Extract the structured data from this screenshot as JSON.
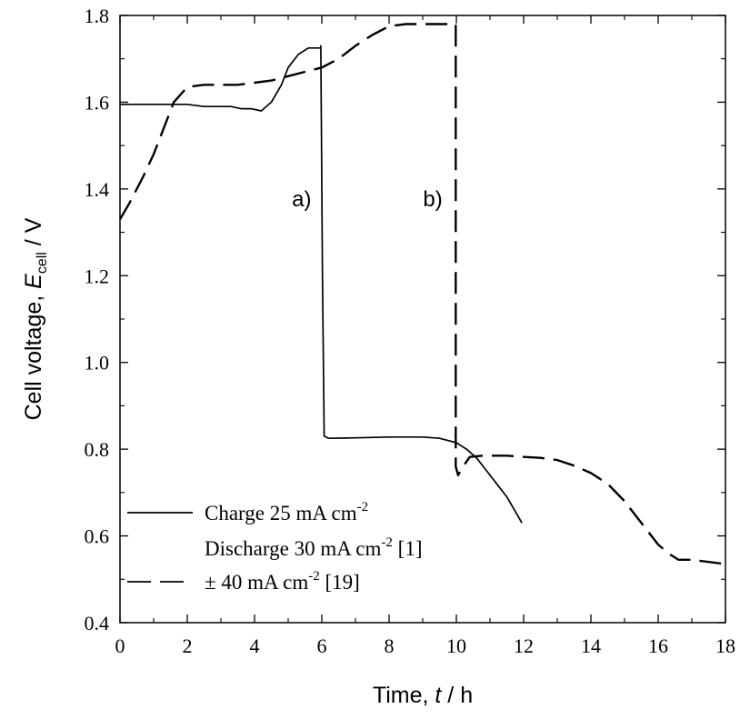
{
  "chart_data": {
    "type": "line",
    "title": "",
    "xlabel": {
      "prefix": "Time, ",
      "var": "t",
      "unit": " / h"
    },
    "ylabel": {
      "prefix": "Cell voltage, ",
      "var": "E",
      "sub": "cell",
      "unit": " / V"
    },
    "xlim": [
      0,
      18
    ],
    "ylim": [
      0.4,
      1.8
    ],
    "xticks": [
      0,
      2,
      4,
      6,
      8,
      10,
      12,
      14,
      16,
      18
    ],
    "yticks": [
      0.4,
      0.6,
      0.8,
      1.0,
      1.2,
      1.4,
      1.6,
      1.8
    ],
    "xtick_labels": [
      "0",
      "2",
      "4",
      "6",
      "8",
      "10",
      "12",
      "14",
      "16",
      "18"
    ],
    "ytick_labels": [
      "0.4",
      "0.6",
      "0.8",
      "1.0",
      "1.2",
      "1.4",
      "1.6",
      "1.8"
    ],
    "grid": false,
    "legend_position": "bottom-left",
    "series": [
      {
        "style": "solid",
        "legend_lines": [
          {
            "text": "Charge 25 mA cm",
            "sup": "-2",
            "after": ""
          },
          {
            "text": "Discharge 30 mA cm",
            "sup": "-2",
            "after": " [1]"
          }
        ],
        "x": [
          0,
          1,
          2,
          2.5,
          3,
          3.3,
          3.6,
          3.9,
          4.2,
          4.5,
          4.8,
          5.0,
          5.3,
          5.6,
          5.9,
          5.97,
          5.97,
          6.02,
          6.07,
          6.2,
          7,
          8,
          9,
          9.5,
          10,
          10.3,
          10.6,
          10.9,
          11.2,
          11.5,
          11.8,
          11.95
        ],
        "y": [
          1.595,
          1.595,
          1.595,
          1.59,
          1.59,
          1.59,
          1.585,
          1.585,
          1.58,
          1.6,
          1.64,
          1.68,
          1.71,
          1.725,
          1.725,
          1.725,
          1.73,
          1.2,
          0.83,
          0.825,
          0.826,
          0.828,
          0.828,
          0.825,
          0.815,
          0.8,
          0.78,
          0.75,
          0.72,
          0.69,
          0.65,
          0.63
        ]
      },
      {
        "style": "dashed",
        "legend_lines": [
          {
            "text": "± 40 mA cm",
            "sup": "-2",
            "after": " [19]"
          }
        ],
        "x": [
          0,
          0.3,
          0.7,
          1.0,
          1.3,
          1.6,
          2.0,
          2.5,
          3,
          3.5,
          4.0,
          4.5,
          5.0,
          5.5,
          6.0,
          6.5,
          7.0,
          7.5,
          8.0,
          8.5,
          9.0,
          9.5,
          9.9,
          9.98,
          9.98,
          10.05,
          10.2,
          10.4,
          10.8,
          11.5,
          12,
          12.5,
          13,
          13.5,
          14,
          14.5,
          15,
          15.5,
          16,
          16.3,
          16.6,
          17,
          17.5,
          18
        ],
        "y": [
          1.33,
          1.37,
          1.43,
          1.48,
          1.54,
          1.6,
          1.635,
          1.64,
          1.64,
          1.64,
          1.645,
          1.65,
          1.66,
          1.67,
          1.68,
          1.7,
          1.73,
          1.755,
          1.775,
          1.78,
          1.78,
          1.78,
          1.78,
          1.78,
          0.76,
          0.74,
          0.76,
          0.782,
          0.785,
          0.785,
          0.782,
          0.78,
          0.775,
          0.762,
          0.745,
          0.72,
          0.68,
          0.63,
          0.58,
          0.56,
          0.545,
          0.545,
          0.54,
          0.535
        ]
      }
    ],
    "annotations": [
      {
        "text": "a)",
        "x": 5.4,
        "y": 1.36
      },
      {
        "text": "b)",
        "x": 9.3,
        "y": 1.36
      }
    ]
  }
}
